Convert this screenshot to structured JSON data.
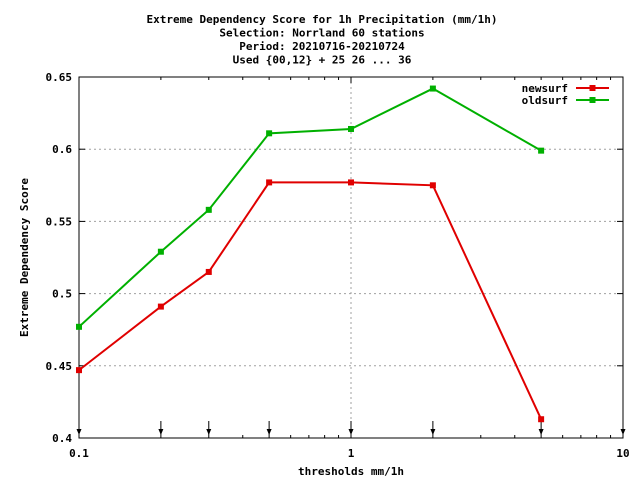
{
  "chart_data": {
    "type": "line",
    "title_lines": [
      "Extreme Dependency Score  for 1h Precipitation (mm/1h)",
      "Selection: Norrland     60 stations",
      "Period: 20210716-20210724",
      "Used {00,12} + 25 26 ... 36"
    ],
    "xlabel": "thresholds mm/1h",
    "ylabel": "Extreme Dependency Score",
    "xscale": "log",
    "xlim": [
      0.1,
      10
    ],
    "ylim": [
      0.4,
      0.65
    ],
    "x_ticks": [
      {
        "value": 0.1,
        "label": "0.1"
      },
      {
        "value": 1,
        "label": "1"
      },
      {
        "value": 10,
        "label": "10"
      }
    ],
    "y_ticks": [
      {
        "value": 0.4,
        "label": "0.4"
      },
      {
        "value": 0.45,
        "label": "0.45"
      },
      {
        "value": 0.5,
        "label": "0.5"
      },
      {
        "value": 0.55,
        "label": "0.55"
      },
      {
        "value": 0.6,
        "label": "0.6"
      },
      {
        "value": 0.65,
        "label": "0.65"
      }
    ],
    "grid": true,
    "legend_position": "top-right",
    "threshold_markers": [
      0.1,
      0.2,
      0.3,
      0.5,
      1,
      2,
      5,
      10
    ],
    "series": [
      {
        "name": "newsurf",
        "color": "#e00000",
        "x": [
          0.1,
          0.2,
          0.3,
          0.5,
          1,
          2,
          5
        ],
        "y": [
          0.447,
          0.491,
          0.515,
          0.577,
          0.577,
          0.575,
          0.413
        ]
      },
      {
        "name": "oldsurf",
        "color": "#00b000",
        "x": [
          0.1,
          0.2,
          0.3,
          0.5,
          1,
          2,
          5
        ],
        "y": [
          0.477,
          0.529,
          0.558,
          0.611,
          0.614,
          0.642,
          0.599
        ]
      }
    ]
  }
}
